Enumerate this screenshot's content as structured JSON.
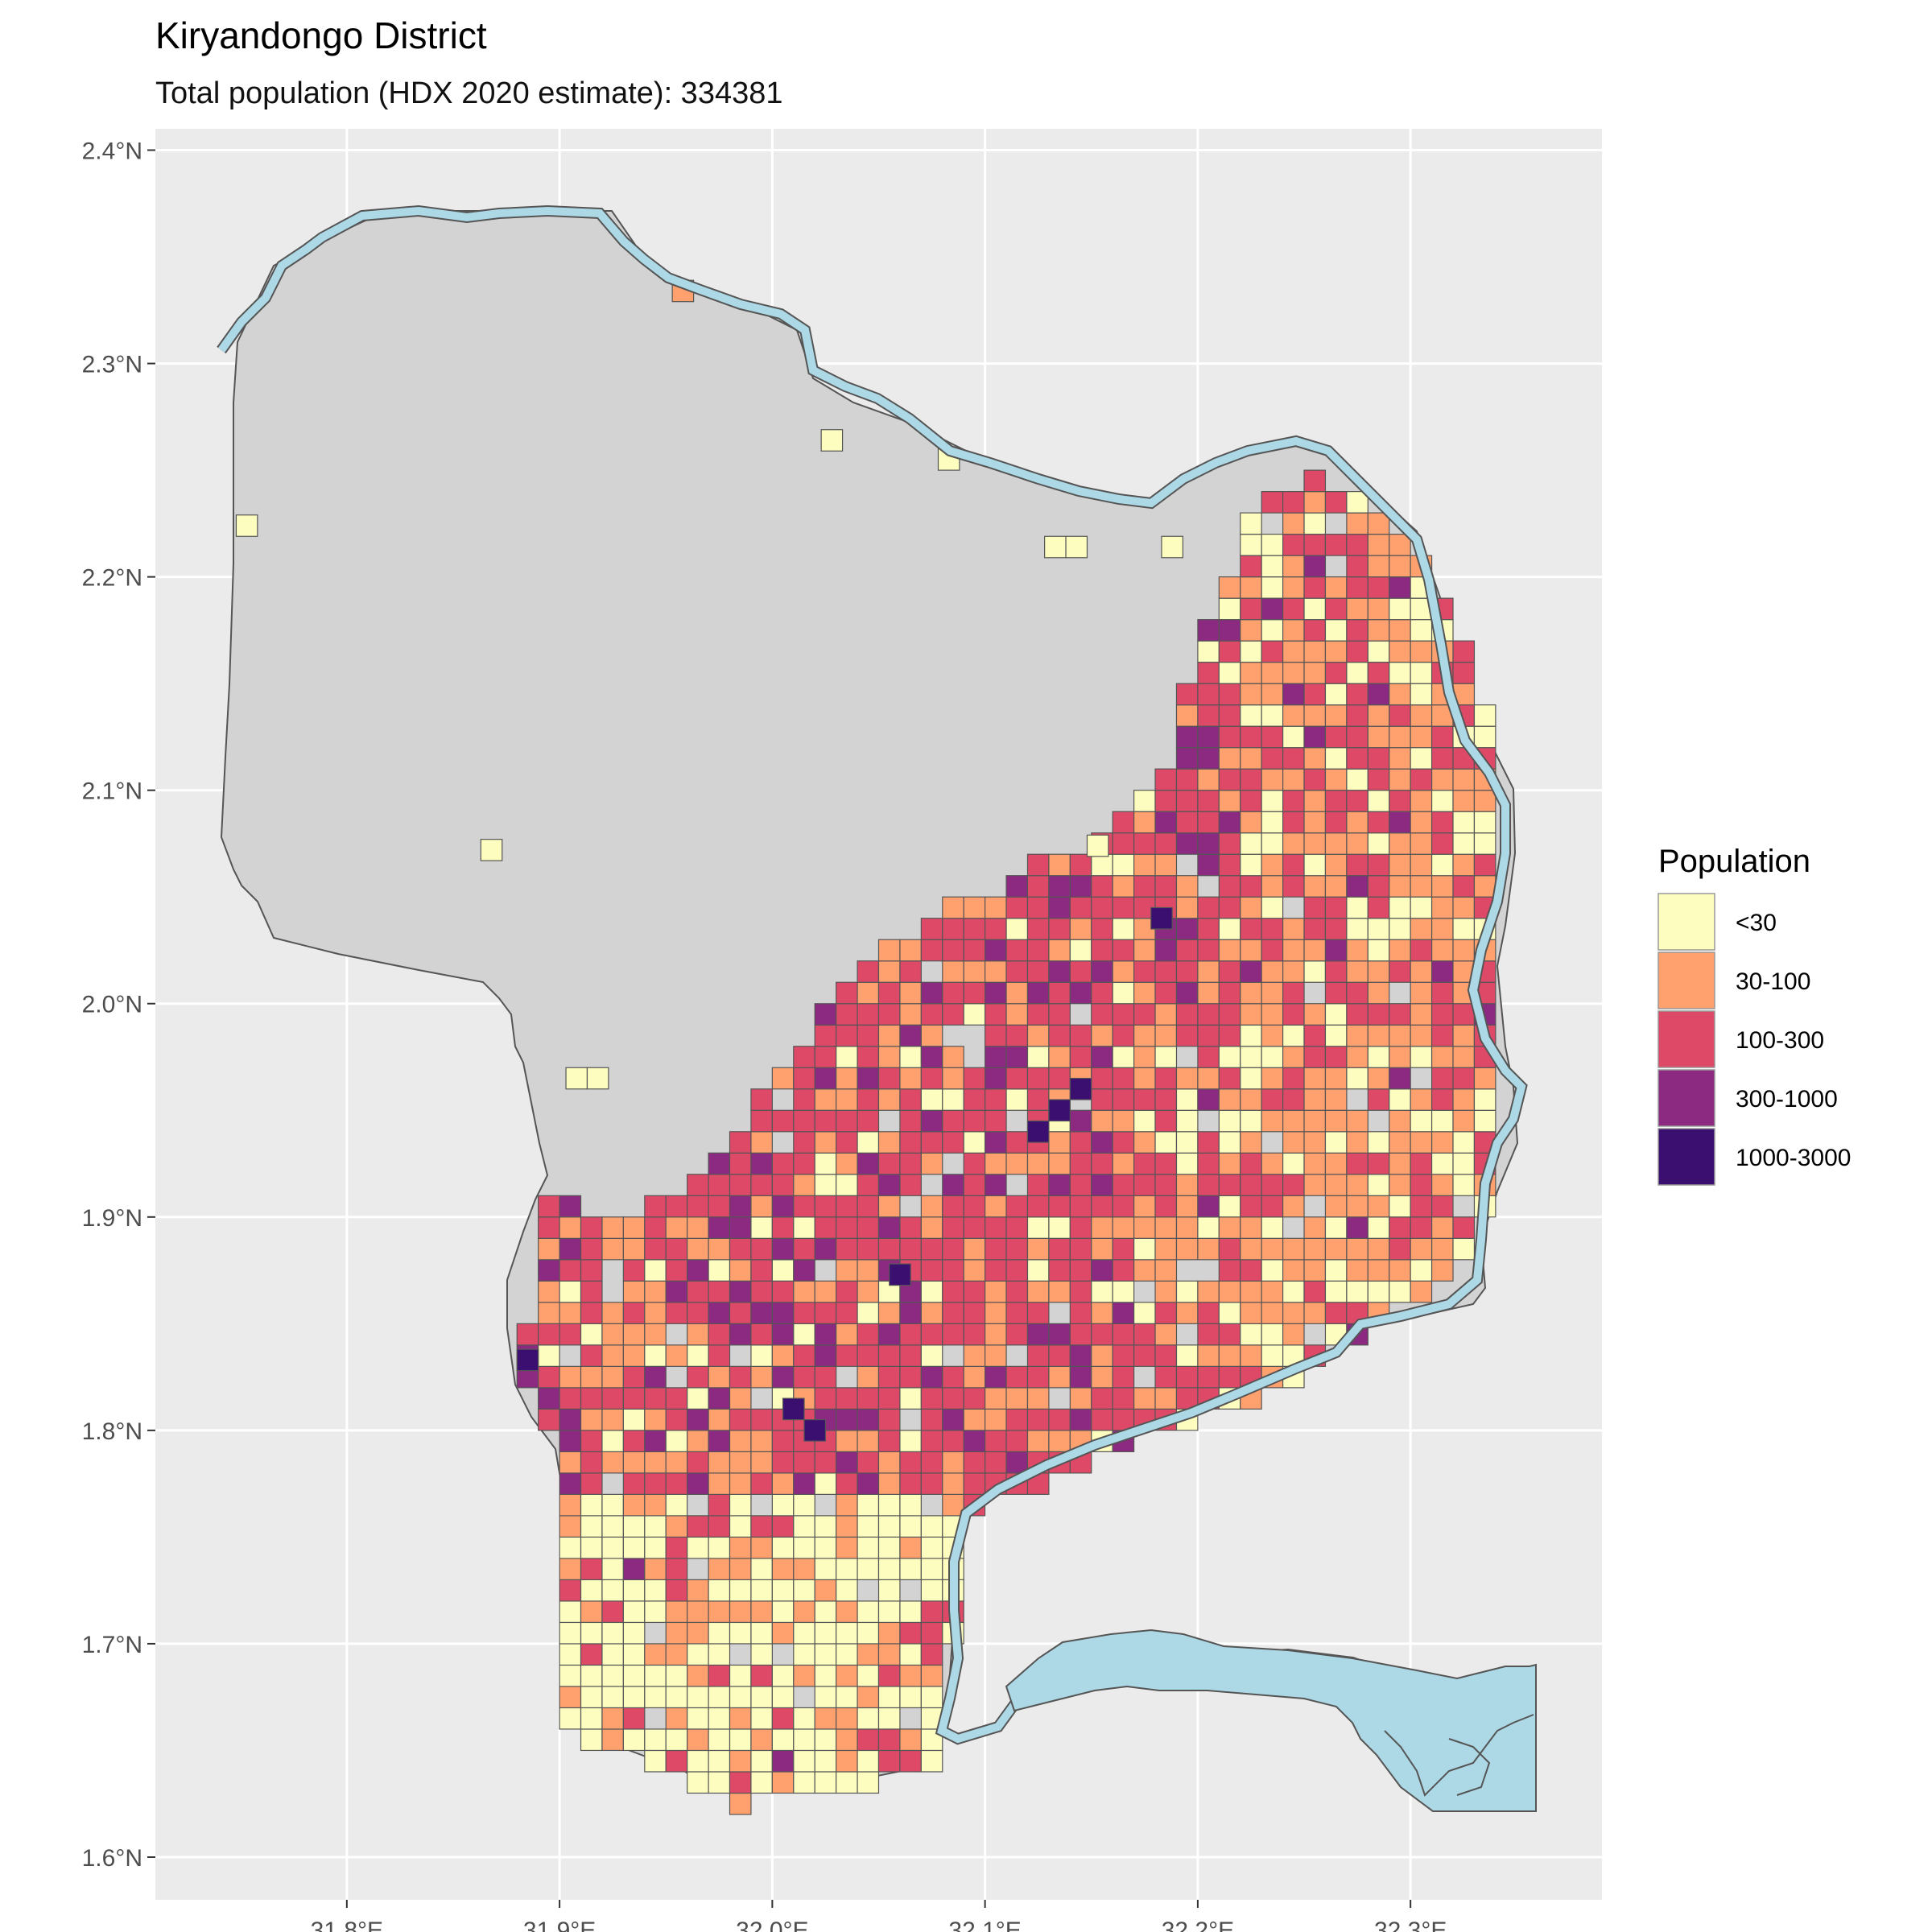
{
  "title": "Kiryandongo District",
  "subtitle": "Total population (HDX 2020 estimate): 334381",
  "axes": {
    "x_ticks": [
      {
        "value": 31.8,
        "label": "31.8°E"
      },
      {
        "value": 31.9,
        "label": "31.9°E"
      },
      {
        "value": 32.0,
        "label": "32.0°E"
      },
      {
        "value": 32.1,
        "label": "32.1°E"
      },
      {
        "value": 32.2,
        "label": "32.2°E"
      },
      {
        "value": 32.3,
        "label": "32.3°E"
      }
    ],
    "y_ticks": [
      {
        "value": 1.6,
        "label": "1.6°N"
      },
      {
        "value": 1.7,
        "label": "1.7°N"
      },
      {
        "value": 1.8,
        "label": "1.8°N"
      },
      {
        "value": 1.9,
        "label": "1.9°N"
      },
      {
        "value": 2.0,
        "label": "2.0°N"
      },
      {
        "value": 2.1,
        "label": "2.1°N"
      },
      {
        "value": 2.2,
        "label": "2.2°N"
      },
      {
        "value": 2.3,
        "label": "2.3°N"
      },
      {
        "value": 2.4,
        "label": "2.4°N"
      }
    ],
    "xlim": [
      31.71,
      32.39
    ],
    "ylim": [
      1.58,
      2.41
    ]
  },
  "legend": {
    "title": "Population",
    "items": [
      {
        "label": "<30",
        "color": "#FCFDBF"
      },
      {
        "label": "30-100",
        "color": "#FEA16E"
      },
      {
        "label": "100-300",
        "color": "#DE4968"
      },
      {
        "label": "300-1000",
        "color": "#8C2981"
      },
      {
        "label": "1000-3000",
        "color": "#3B0F70"
      }
    ]
  },
  "colors": {
    "panel": "#EBEBEB",
    "grid": "#FFFFFF",
    "district_fill": "#D3D3D3",
    "water": "#ADD8E6"
  },
  "chart_data": {
    "type": "choropleth-grid",
    "classes": [
      "<30",
      "30-100",
      "100-300",
      "300-1000",
      "1000-3000"
    ],
    "cell_size_deg": 0.01,
    "cells_note": "cell class per 0.01° grid square; lon/lat = cell centre",
    "cells": [
      {
        "lon": 31.753,
        "lat": 2.224,
        "class": "<30"
      },
      {
        "lon": 31.868,
        "lat": 2.072,
        "class": "<30"
      },
      {
        "lon": 31.908,
        "lat": 1.965,
        "class": "<30"
      },
      {
        "lon": 31.918,
        "lat": 1.965,
        "class": "<30"
      },
      {
        "lon": 31.958,
        "lat": 2.334,
        "class": "30-100"
      },
      {
        "lon": 32.028,
        "lat": 2.264,
        "class": "<30"
      },
      {
        "lon": 32.083,
        "lat": 2.255,
        "class": "<30"
      },
      {
        "lon": 32.133,
        "lat": 2.214,
        "class": "<30"
      },
      {
        "lon": 32.143,
        "lat": 2.214,
        "class": "<30"
      },
      {
        "lon": 32.188,
        "lat": 2.214,
        "class": "<30"
      },
      {
        "lon": 32.153,
        "lat": 2.074,
        "class": "<30"
      },
      {
        "lon": 32.183,
        "lat": 2.04,
        "class": "1000-3000"
      },
      {
        "lon": 32.135,
        "lat": 1.95,
        "class": "1000-3000"
      },
      {
        "lon": 32.145,
        "lat": 1.96,
        "class": "1000-3000"
      },
      {
        "lon": 32.125,
        "lat": 1.94,
        "class": "1000-3000"
      },
      {
        "lon": 32.01,
        "lat": 1.81,
        "class": "1000-3000"
      },
      {
        "lon": 32.02,
        "lat": 1.8,
        "class": "1000-3000"
      },
      {
        "lon": 31.885,
        "lat": 1.833,
        "class": "1000-3000"
      },
      {
        "lon": 32.06,
        "lat": 1.873,
        "class": "1000-3000"
      }
    ]
  }
}
